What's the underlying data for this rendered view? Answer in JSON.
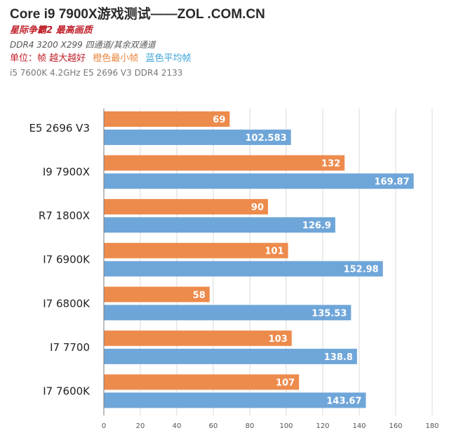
{
  "header": {
    "title": "Core i9 7900X游戏测试——ZOL .COM.CN",
    "subtitle": "星际争霸2 最高画质",
    "config": "DDR4 3200  X299 四通道/其余双通道",
    "legend_unit": "单位：帧 越大越好",
    "legend_orange": "橙色最小帧",
    "legend_blue": "蓝色平均帧",
    "note": "i5 7600K 4.2GHz  E5 2696 V3 DDR4 2133"
  },
  "colors": {
    "orange": "#ed8b4c",
    "blue": "#6fa6d9",
    "title": "#2a2a2a",
    "accent_red": "#c0202a"
  },
  "chart_data": {
    "type": "bar",
    "orientation": "horizontal",
    "categories": [
      "E5 2696 V3",
      "I9 7900X",
      "R7 1800X",
      "I7 6900K",
      "I7 6800K",
      "I7 7700",
      "I7 7600K"
    ],
    "series": [
      {
        "values": [
          69,
          132,
          90,
          101,
          58,
          103,
          107
        ],
        "color": "#ed8b4c"
      },
      {
        "values": [
          102.583,
          169.87,
          126.9,
          152.98,
          135.53,
          138.8,
          143.67
        ],
        "color": "#6fa6d9"
      }
    ],
    "x_ticks": [
      0,
      20,
      40,
      60,
      80,
      100,
      120,
      140,
      160,
      180
    ],
    "xlim": [
      0,
      180
    ],
    "grid": true,
    "legend": "header"
  }
}
